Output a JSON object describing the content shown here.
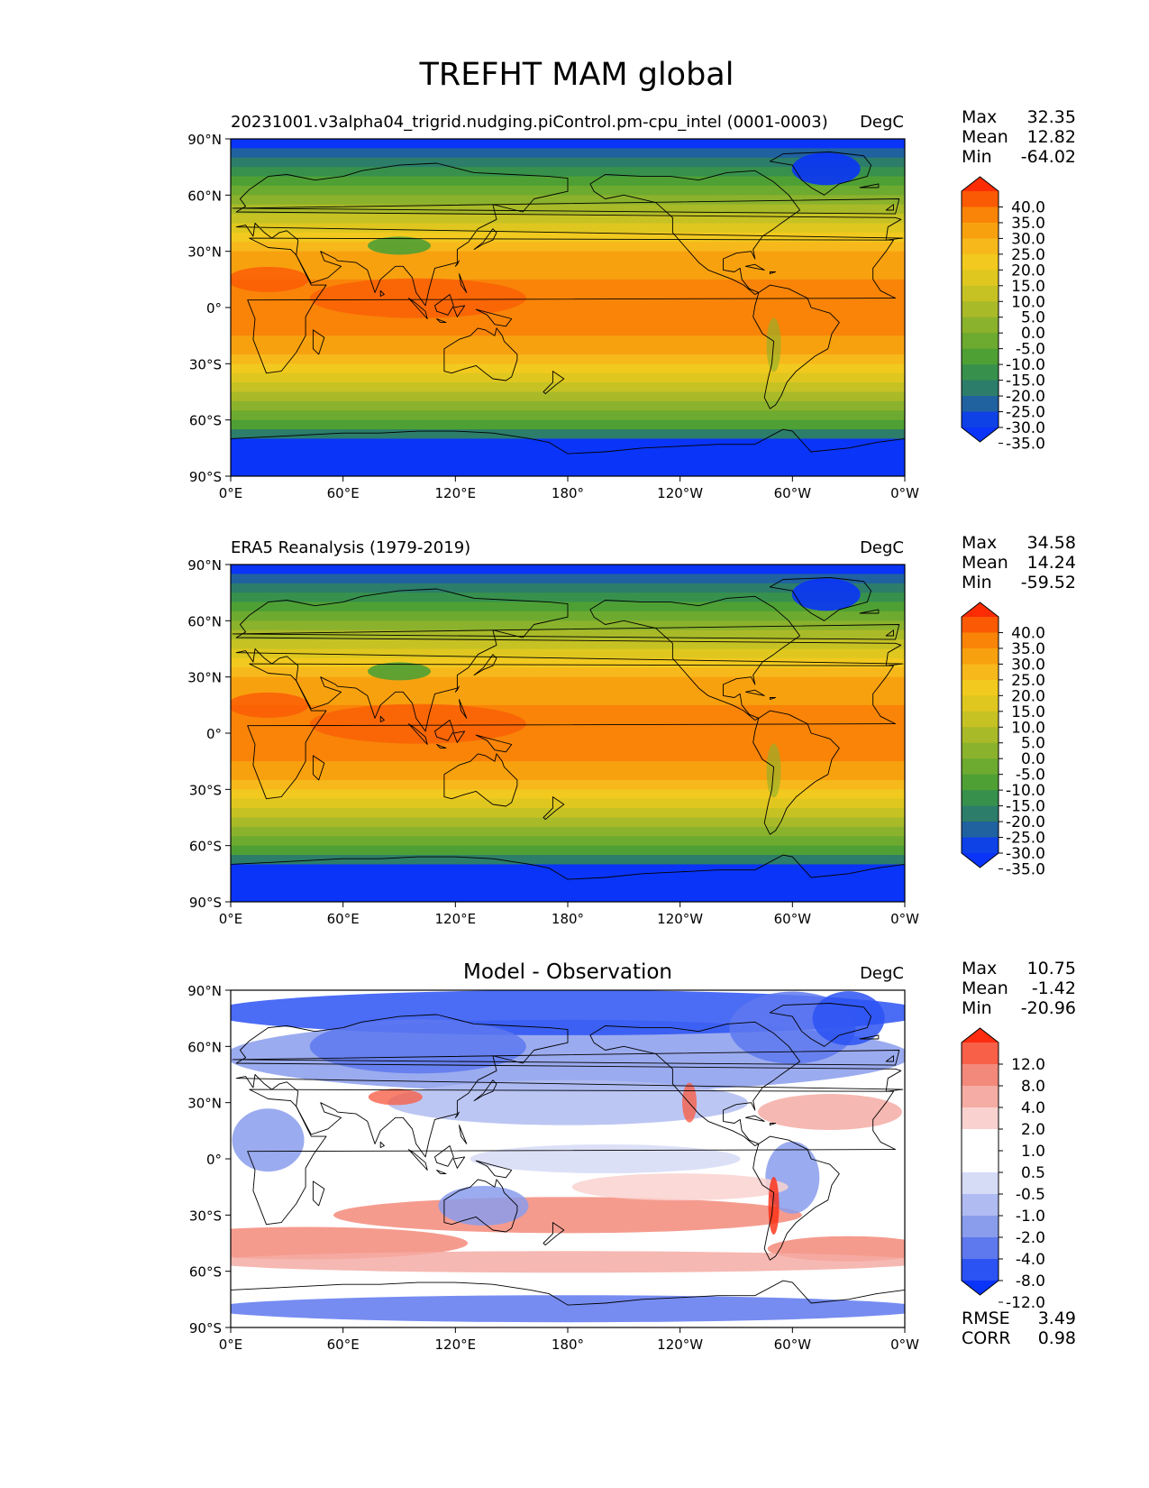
{
  "figure_title": "TREFHT MAM global",
  "lat_ticks": [
    "90°N",
    "60°N",
    "30°N",
    "0°",
    "30°S",
    "60°S",
    "90°S"
  ],
  "lon_ticks": [
    "0°E",
    "60°E",
    "120°E",
    "180°",
    "120°W",
    "60°W",
    "0°W"
  ],
  "chart_data": [
    {
      "type": "heatmap",
      "title": "",
      "left_title": "20231001.v3alpha04_trigrid.nudging.piControl.pm-cpu_intel (0001-0003)",
      "units": "DegC",
      "stats": {
        "max_label": "Max",
        "max": "32.35",
        "mean_label": "Mean",
        "mean": "12.82",
        "min_label": "Min",
        "min": "-64.02"
      },
      "colorbar": {
        "ticks": [
          "40.0",
          "35.0",
          "30.0",
          "25.0",
          "20.0",
          "15.0",
          "10.0",
          "5.0",
          "0.0",
          "-5.0",
          "-10.0",
          "-15.0",
          "-20.0",
          "-25.0",
          "-30.0",
          "-35.0"
        ],
        "colors": [
          "#fd2c04",
          "#fb5a05",
          "#f98408",
          "#f8a10f",
          "#f7b81b",
          "#f2c91e",
          "#dfc71f",
          "#c6c224",
          "#a9ba28",
          "#8bb22c",
          "#6daa30",
          "#4fa034",
          "#37914c",
          "#2c7d6a",
          "#2061a0",
          "#0e41e6",
          "#0a34f7"
        ]
      },
      "xlim": [
        0,
        360
      ],
      "ylim": [
        -90,
        90
      ]
    },
    {
      "type": "heatmap",
      "title": "",
      "left_title": "ERA5 Reanalysis (1979-2019)",
      "units": "DegC",
      "stats": {
        "max_label": "Max",
        "max": "34.58",
        "mean_label": "Mean",
        "mean": "14.24",
        "min_label": "Min",
        "min": "-59.52"
      },
      "colorbar": {
        "ticks": [
          "40.0",
          "35.0",
          "30.0",
          "25.0",
          "20.0",
          "15.0",
          "10.0",
          "5.0",
          "0.0",
          "-5.0",
          "-10.0",
          "-15.0",
          "-20.0",
          "-25.0",
          "-30.0",
          "-35.0"
        ],
        "colors": [
          "#fd2c04",
          "#fb5a05",
          "#f98408",
          "#f8a10f",
          "#f7b81b",
          "#f2c91e",
          "#dfc71f",
          "#c6c224",
          "#a9ba28",
          "#8bb22c",
          "#6daa30",
          "#4fa034",
          "#37914c",
          "#2c7d6a",
          "#2061a0",
          "#0e41e6",
          "#0a34f7"
        ]
      },
      "xlim": [
        0,
        360
      ],
      "ylim": [
        -90,
        90
      ]
    },
    {
      "type": "heatmap",
      "title": "Model - Observation",
      "left_title": "",
      "units": "DegC",
      "stats": {
        "max_label": "Max",
        "max": "10.75",
        "mean_label": "Mean",
        "mean": "-1.42",
        "min_label": "Min",
        "min": "-20.96"
      },
      "extra_stats": {
        "rmse_label": "RMSE",
        "rmse": "3.49",
        "corr_label": "CORR",
        "corr": "0.98"
      },
      "colorbar": {
        "ticks": [
          "12.0",
          "8.0",
          "4.0",
          "2.0",
          "1.0",
          "0.5",
          "-0.5",
          "-1.0",
          "-2.0",
          "-4.0",
          "-8.0",
          "-12.0"
        ],
        "colors": [
          "#fd2c10",
          "#f86048",
          "#f3897a",
          "#f5aca4",
          "#f9d2cf",
          "#ffffff",
          "#ffffff",
          "#d6dbf6",
          "#b0bcf1",
          "#8a9cec",
          "#5e78ee",
          "#2b52f3",
          "#0a34f7"
        ]
      },
      "xlim": [
        0,
        360
      ],
      "ylim": [
        -90,
        90
      ]
    }
  ]
}
